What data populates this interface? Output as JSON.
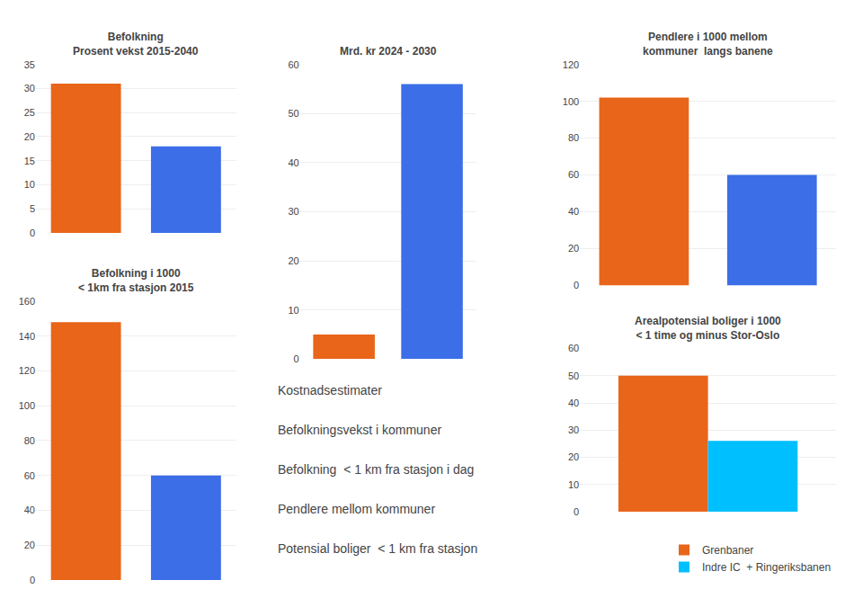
{
  "chart_data": [
    {
      "type": "bar",
      "title": "Befolkning",
      "subtitle": "Prosent vekst 2015-2040",
      "categories": [
        null,
        null
      ],
      "values": [
        31,
        18
      ],
      "colors": [
        "#E8651A",
        "#3C6EE8"
      ],
      "ylim": [
        0,
        35
      ],
      "yticks": [
        0,
        5,
        10,
        15,
        20,
        25,
        30,
        35
      ],
      "grid": true,
      "tick_labels": "y"
    },
    {
      "type": "bar",
      "title": "Befolkning i 1000",
      "subtitle": "< 1km fra stasjon 2015",
      "categories": [
        null,
        null
      ],
      "values": [
        148,
        60
      ],
      "colors": [
        "#E8651A",
        "#3C6EE8"
      ],
      "ylim": [
        0,
        160
      ],
      "yticks": [
        0,
        20,
        40,
        60,
        80,
        100,
        120,
        140,
        160
      ],
      "grid": true,
      "tick_labels": "y"
    },
    {
      "type": "bar",
      "title": "Mrd. kr 2024 - 2030",
      "categories": [
        null,
        null
      ],
      "values": [
        5,
        56
      ],
      "colors": [
        "#E8651A",
        "#3C6EE8"
      ],
      "ylim": [
        0,
        60
      ],
      "yticks": [
        0,
        10,
        20,
        30,
        40,
        50,
        60
      ],
      "grid": true,
      "tick_labels": "y",
      "annotations": [
        "Kostnadsestimater",
        "Befolkningsvekst i kommuner",
        "Befolkning  < 1 km fra stasjon i dag",
        "Pendlere mellom kommuner",
        "Potensial boliger  < 1 km fra stasjon"
      ]
    },
    {
      "type": "bar",
      "title": "Pendlere i 1000 mellom",
      "subtitle": "kommuner  langs banene",
      "categories": [
        null,
        null
      ],
      "values": [
        102,
        60
      ],
      "colors": [
        "#E8651A",
        "#3C6EE8"
      ],
      "ylim": [
        0,
        120
      ],
      "yticks": [
        0,
        20,
        40,
        60,
        80,
        100,
        120
      ],
      "grid": true,
      "tick_labels": "y"
    },
    {
      "type": "bar",
      "title": "Arealpotensial boliger i 1000",
      "subtitle": "< 1 time og minus Stor-Oslo",
      "categories": [
        null
      ],
      "series": [
        {
          "name": "Grenbaner",
          "color": "#E8651A",
          "values": [
            50
          ]
        },
        {
          "name": "Indre IC  + Ringeriksbanen",
          "color": "#00BFFF",
          "values": [
            26
          ]
        }
      ],
      "ylim": [
        0,
        60
      ],
      "yticks": [
        0,
        10,
        20,
        30,
        40,
        50,
        60
      ],
      "grid": true,
      "tick_labels": "y",
      "legend": "lower right"
    }
  ]
}
